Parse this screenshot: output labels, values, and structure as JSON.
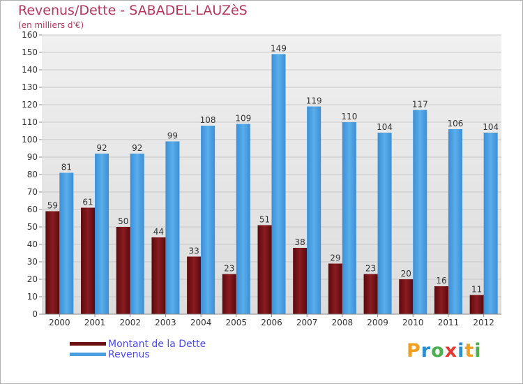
{
  "header": {
    "title": "Revenus/Dette - SABADEL-LAUZèS",
    "subtitle": "(en milliers d'€)"
  },
  "legend": {
    "items": [
      {
        "label": "Montant de la Dette",
        "color": "#6b0f12"
      },
      {
        "label": "Revenus",
        "color": "#4a9fe0"
      }
    ]
  },
  "brand": {
    "logo_text": "Proxiti",
    "letters": [
      {
        "ch": "P",
        "color": "#f0a020"
      },
      {
        "ch": "r",
        "color": "#2a8fd0"
      },
      {
        "ch": "o",
        "color": "#4caf50"
      },
      {
        "ch": "x",
        "color": "#e53935"
      },
      {
        "ch": "i",
        "color": "#2a8fd0"
      },
      {
        "ch": "t",
        "color": "#f0a020"
      },
      {
        "ch": "i",
        "color": "#4caf50"
      }
    ]
  },
  "chart_data": {
    "type": "bar",
    "title": "Revenus/Dette - SABADEL-LAUZèS",
    "subtitle": "(en milliers d'€)",
    "categories": [
      "2000",
      "2001",
      "2002",
      "2003",
      "2004",
      "2005",
      "2006",
      "2007",
      "2008",
      "2009",
      "2010",
      "2011",
      "2012"
    ],
    "series": [
      {
        "name": "Montant de la Dette",
        "color": "#6b0f12",
        "values": [
          59,
          61,
          50,
          44,
          33,
          23,
          51,
          38,
          29,
          23,
          20,
          16,
          11
        ]
      },
      {
        "name": "Revenus",
        "color": "#4a9fe0",
        "values": [
          81,
          92,
          92,
          99,
          108,
          109,
          149,
          119,
          110,
          104,
          117,
          106,
          104
        ]
      }
    ],
    "ylim": [
      0,
      160
    ],
    "yticks": [
      0,
      10,
      20,
      30,
      40,
      50,
      60,
      70,
      80,
      90,
      100,
      110,
      120,
      130,
      140,
      150,
      160
    ],
    "grid": true,
    "legend_position": "bottom-left",
    "data_labels": true
  }
}
